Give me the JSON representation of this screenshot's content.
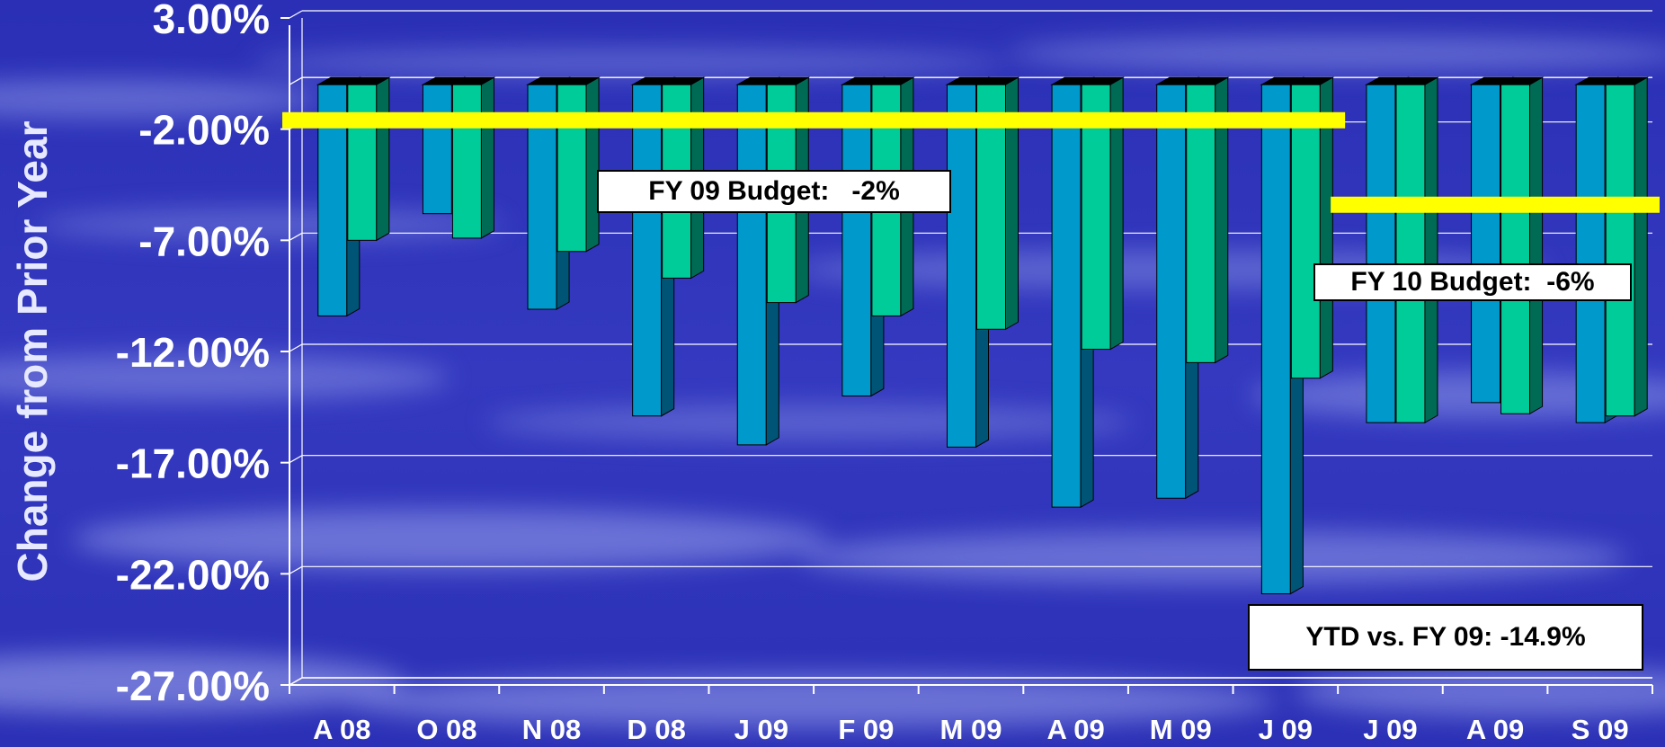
{
  "chart_data": {
    "type": "bar",
    "ylabel": "Change from Prior Year",
    "ylim": [
      -27,
      3
    ],
    "yticks": [
      3,
      -2,
      -7,
      -12,
      -17,
      -22,
      -27
    ],
    "ytick_labels": [
      "3.00%",
      "-2.00%",
      "-7.00%",
      "-12.00%",
      "-17.00%",
      "-22.00%",
      "-27.00%"
    ],
    "grid": true,
    "categories": [
      "A 08",
      "O 08",
      "N 08",
      "D 08",
      "J 09",
      "F 09",
      "M 09",
      "A 09",
      "M 09",
      "J 09",
      "J 09",
      "A 09",
      "S 09"
    ],
    "series": [
      {
        "values": [
          -10.4,
          -5.8,
          -10.1,
          -14.9,
          -16.2,
          -14.0,
          -16.3,
          -19.0,
          -18.6,
          -22.9,
          -15.2,
          -14.3,
          -15.2
        ]
      },
      {
        "values": [
          -7.0,
          -6.9,
          -7.5,
          -8.7,
          -9.8,
          -10.4,
          -11.0,
          -11.9,
          -12.5,
          -13.2,
          -15.2,
          -14.8,
          -14.9
        ]
      }
    ],
    "reference_lines": [
      {
        "value": -1.6,
        "from_category": 0,
        "to_category": 9
      },
      {
        "value": -5.4,
        "from_category": 10,
        "to_category": 12
      }
    ],
    "annotations": [
      {
        "text": "FY 09 Budget:   -2%"
      },
      {
        "text": "FY 10 Budget:  -6%"
      },
      {
        "text": "YTD vs. FY 09: -14.9%"
      }
    ],
    "colors": {
      "series_1": "#0099cc",
      "series_2": "#00cc99",
      "reference_line": "#ffff00",
      "background": "#2e33b8"
    }
  }
}
